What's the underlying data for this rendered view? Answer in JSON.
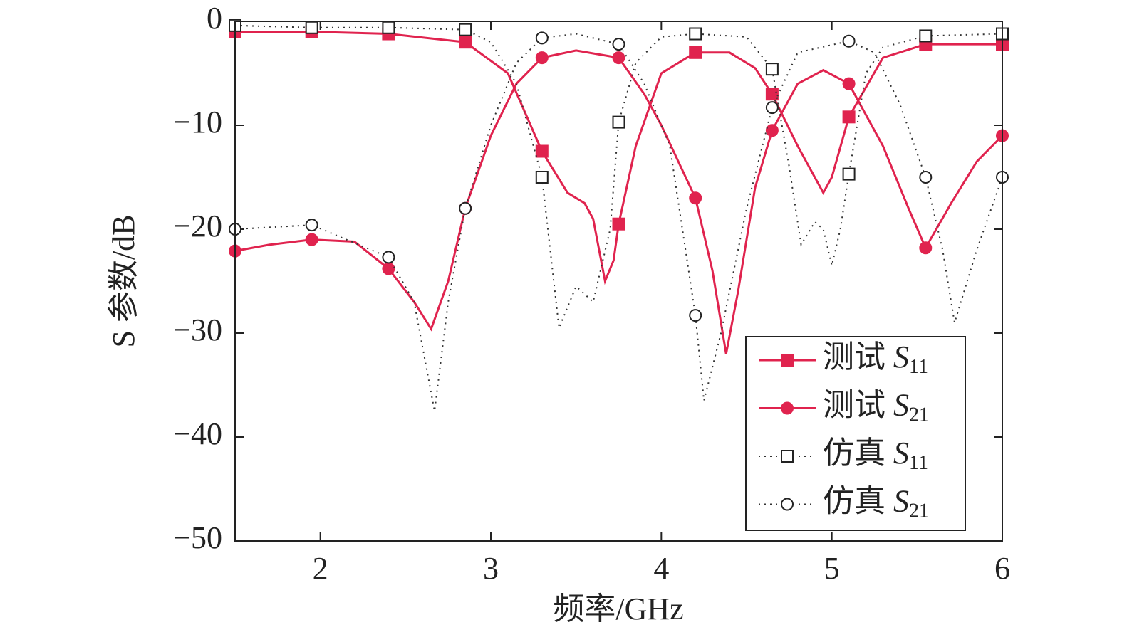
{
  "chart_data": {
    "type": "line",
    "xlabel": "频率/GHz",
    "ylabel": "S 参数/dB",
    "xlim": [
      1.5,
      6
    ],
    "xticks": [
      2,
      3,
      4,
      5,
      6
    ],
    "ylim": [
      -50,
      0
    ],
    "yticks": [
      0,
      {
        "value": -10,
        "label": "−10"
      },
      {
        "value": -20,
        "label": "−20"
      },
      {
        "value": -30,
        "label": "−30"
      },
      {
        "value": -40,
        "label": "−40"
      },
      {
        "value": -50,
        "label": "−50"
      }
    ],
    "grid": false,
    "legend": "lower right",
    "series": [
      {
        "name": "测试 S11",
        "color": "#e0234e",
        "style": "solid",
        "marker": "square",
        "marker_fill": "#e0234e",
        "x": [
          1.5,
          1.95,
          2.4,
          2.85,
          3.1,
          3.3,
          3.45,
          3.55,
          3.6,
          3.67,
          3.72,
          3.75,
          3.85,
          4.0,
          4.2,
          4.4,
          4.55,
          4.65,
          4.8,
          4.95,
          5.0,
          5.1,
          5.3,
          5.55,
          6.0
        ],
        "values": [
          -1,
          -1,
          -1.2,
          -2,
          -5,
          -12.5,
          -16.5,
          -17.5,
          -19,
          -25,
          -23,
          -19.5,
          -12,
          -5,
          -3,
          -3,
          -4.5,
          -7,
          -12,
          -16.5,
          -15,
          -9.2,
          -3.5,
          -2.2,
          -2.2
        ],
        "markers": {
          "x": [
            1.5,
            1.95,
            2.4,
            2.85,
            3.3,
            3.75,
            4.2,
            4.65,
            5.1,
            5.55,
            6.0
          ],
          "values": [
            -1,
            -1,
            -1.2,
            -2,
            -12.5,
            -19.5,
            -3,
            -7,
            -9.2,
            -2.2,
            -2.2
          ]
        }
      },
      {
        "name": "测试 S21",
        "color": "#e0234e",
        "style": "solid",
        "marker": "circle",
        "marker_fill": "#e0234e",
        "x": [
          1.5,
          1.7,
          1.95,
          2.2,
          2.4,
          2.55,
          2.65,
          2.75,
          2.85,
          3.0,
          3.15,
          3.3,
          3.5,
          3.75,
          3.9,
          4.0,
          4.2,
          4.3,
          4.38,
          4.45,
          4.55,
          4.65,
          4.8,
          4.95,
          5.1,
          5.3,
          5.45,
          5.55,
          5.7,
          5.85,
          6.0
        ],
        "values": [
          -22.1,
          -21.5,
          -21,
          -21.2,
          -23.8,
          -27,
          -29.6,
          -25,
          -18,
          -11,
          -6,
          -3.5,
          -2.8,
          -3.5,
          -7,
          -10,
          -17,
          -24,
          -32,
          -26,
          -16,
          -10.5,
          -6,
          -4.7,
          -6,
          -12,
          -18,
          -21.8,
          -17.5,
          -13.5,
          -11
        ],
        "markers": {
          "x": [
            1.5,
            1.95,
            2.4,
            2.85,
            3.3,
            3.75,
            4.2,
            4.65,
            5.1,
            5.55,
            6.0
          ],
          "values": [
            -22.1,
            -21,
            -23.8,
            -18,
            -3.5,
            -3.5,
            -17,
            -10.5,
            -6,
            -21.8,
            -11
          ]
        }
      },
      {
        "name": "仿真 S11",
        "color": "#333333",
        "style": "dotted",
        "marker": "square",
        "marker_fill": "#ffffff",
        "x": [
          1.5,
          1.95,
          2.4,
          2.85,
          3.0,
          3.15,
          3.3,
          3.4,
          3.5,
          3.6,
          3.7,
          3.75,
          3.85,
          4.0,
          4.2,
          4.5,
          4.65,
          4.75,
          4.82,
          4.9,
          4.95,
          5.0,
          5.05,
          5.1,
          5.2,
          5.3,
          5.55,
          6.0
        ],
        "values": [
          -0.4,
          -0.6,
          -0.6,
          -0.8,
          -2,
          -6,
          -15,
          -29.5,
          -25.5,
          -27,
          -20,
          -9.7,
          -4,
          -1.5,
          -1.2,
          -1.5,
          -4.6,
          -14,
          -21.5,
          -19.3,
          -20,
          -23.5,
          -20,
          -14.7,
          -5,
          -2.5,
          -1.4,
          -1.2
        ],
        "markers": {
          "x": [
            1.5,
            1.95,
            2.4,
            2.85,
            3.3,
            3.75,
            4.2,
            4.65,
            5.1,
            5.55,
            6.0
          ],
          "values": [
            -0.4,
            -0.6,
            -0.6,
            -0.8,
            -15,
            -9.7,
            -1.2,
            -4.6,
            -14.7,
            -1.4,
            -1.2
          ]
        }
      },
      {
        "name": "仿真 S21",
        "color": "#333333",
        "style": "dotted",
        "marker": "circle",
        "marker_fill": "#ffffff",
        "x": [
          1.5,
          1.95,
          2.4,
          2.55,
          2.67,
          2.75,
          2.85,
          3.0,
          3.15,
          3.3,
          3.5,
          3.75,
          3.9,
          4.05,
          4.2,
          4.25,
          4.35,
          4.5,
          4.65,
          4.8,
          5.1,
          5.25,
          5.4,
          5.55,
          5.65,
          5.72,
          5.85,
          6.0
        ],
        "values": [
          -20,
          -19.6,
          -22.7,
          -27,
          -37.5,
          -27,
          -18,
          -10,
          -4,
          -1.6,
          -1.2,
          -2.2,
          -6,
          -12,
          -28.3,
          -36.5,
          -30,
          -18,
          -8.3,
          -3,
          -1.9,
          -3,
          -8,
          -15,
          -22,
          -29,
          -22,
          -15
        ],
        "markers": {
          "x": [
            1.5,
            1.95,
            2.4,
            2.85,
            3.3,
            3.75,
            4.2,
            4.65,
            5.1,
            5.55,
            6.0
          ],
          "values": [
            -20,
            -19.6,
            -22.7,
            -18,
            -1.6,
            -2.2,
            -28.3,
            -8.3,
            -1.9,
            -15,
            -15
          ]
        }
      }
    ]
  }
}
